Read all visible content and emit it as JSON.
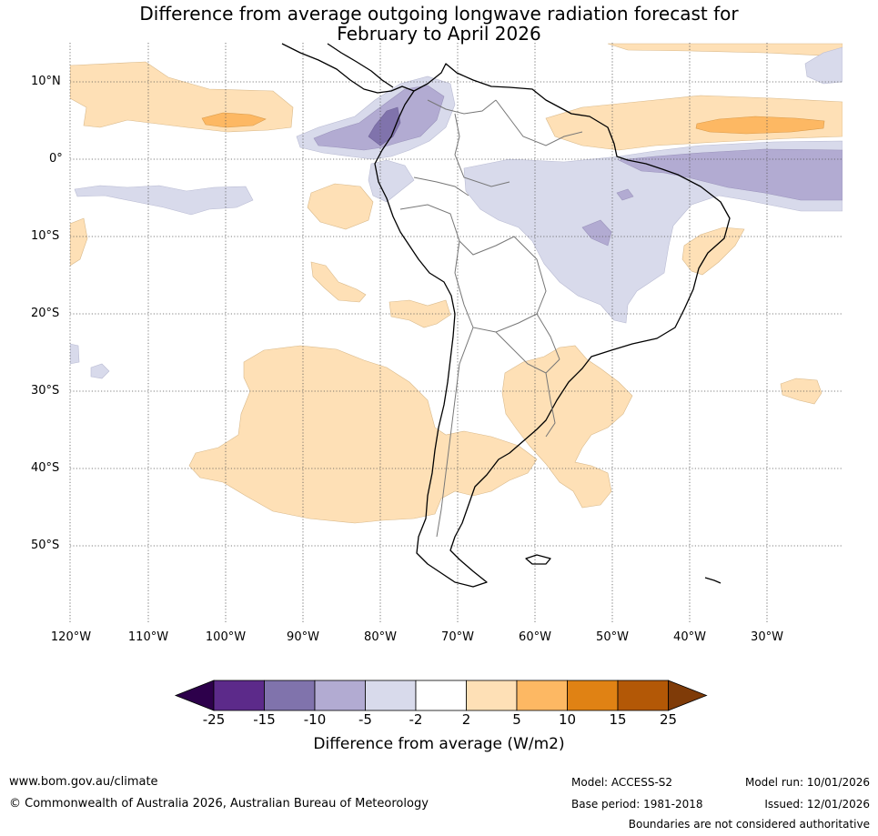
{
  "title_line1": "Difference from average outgoing longwave radiation forecast for",
  "title_line2": "February to April 2026",
  "lat_labels": [
    "10°N",
    "0°",
    "10°S",
    "20°S",
    "30°S",
    "40°S",
    "50°S"
  ],
  "lon_labels": [
    "120°W",
    "110°W",
    "100°W",
    "90°W",
    "80°W",
    "70°W",
    "60°W",
    "50°W",
    "40°W",
    "30°W"
  ],
  "colorbar": {
    "ticks": [
      "-25",
      "-15",
      "-10",
      "-5",
      "-2",
      "2",
      "5",
      "10",
      "15",
      "25"
    ],
    "colors": [
      "#2d004b",
      "#5c2a8a",
      "#8073ac",
      "#b2abd2",
      "#d8daeb",
      "#ffffff",
      "#fee0b6",
      "#fdb863",
      "#e08214",
      "#b35806",
      "#7f3b08"
    ],
    "title": "Difference from average (W/m2)"
  },
  "footer": {
    "url": "www.bom.gov.au/climate",
    "copyright": "© Commonwealth of Australia 2026, Australian Bureau of Meteorology",
    "model": "Model: ACCESS-S2",
    "base_period": "Base period: 1981-2018",
    "model_run": "Model run: 10/01/2026",
    "issued": "Issued: 12/01/2026",
    "disclaimer": "Boundaries are not considered authoritative"
  }
}
